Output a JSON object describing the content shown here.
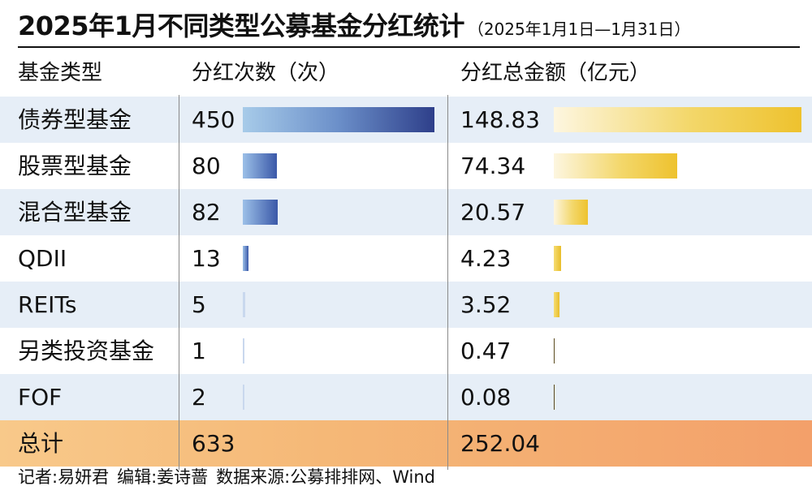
{
  "title": "2025年1月不同类型公募基金分红统计",
  "subtitle": "（2025年1月1日—1月31日）",
  "headers": {
    "name": "基金类型",
    "count": "分红次数（次）",
    "amount": "分红总金额（亿元）"
  },
  "chart_data": {
    "type": "table",
    "categories": [
      "债券型基金",
      "股票型基金",
      "混合型基金",
      "QDII",
      "REITs",
      "另类投资基金",
      "FOF"
    ],
    "series": [
      {
        "name": "分红次数（次）",
        "values": [
          450,
          80,
          82,
          13,
          5,
          1,
          2
        ]
      },
      {
        "name": "分红总金额（亿元）",
        "values": [
          148.83,
          74.34,
          20.57,
          4.23,
          3.52,
          0.47,
          0.08
        ]
      }
    ],
    "count_display": [
      "450",
      "80",
      "82",
      "13",
      "5",
      "1",
      "2"
    ],
    "amount_display": [
      "148.83",
      "74.34",
      "20.57",
      "4.23",
      "3.52",
      "0.47",
      "0.08"
    ],
    "total": {
      "label": "总计",
      "count": "633",
      "amount": "252.04"
    }
  },
  "colors": {
    "count_bar_dark": "#2e3f8a",
    "count_bar_light": "#a7cbe9",
    "amount_bar": "#eec22e",
    "row_shade": "#e6eef7",
    "total_row": "#f5b877"
  },
  "footer": {
    "reporter": "记者:易妍君",
    "editor": "编辑:姜诗蔷",
    "source": "数据来源:公募排排网、Wind"
  }
}
